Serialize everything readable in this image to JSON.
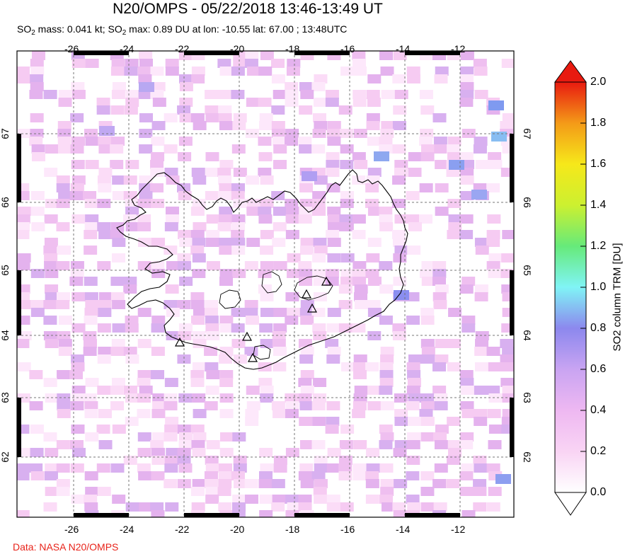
{
  "header": {
    "title": "N20/OMPS - 05/22/2018 13:46-13:49 UT",
    "subtitle_parts": {
      "p1": "SO",
      "s1": "2",
      "p2": " mass: 0.041 kt; SO",
      "s2": "2",
      "p3": " max: 0.89 DU at lon: -10.55 lat: 67.00 ; 13:48UTC"
    }
  },
  "map": {
    "lon_ticks": [
      "-26",
      "-24",
      "-22",
      "-20",
      "-18",
      "-16",
      "-14",
      "-12"
    ],
    "lat_ticks": [
      "67",
      "66",
      "65",
      "64",
      "63",
      "62"
    ],
    "lon_range": [
      -28.1,
      -9.8
    ],
    "lat_range": [
      61.2,
      68.1
    ],
    "land_outline": "Iceland coastline",
    "volcano_markers": 6
  },
  "colorbar": {
    "title": "SO2 column TRM [DU]",
    "labels": [
      "2.0",
      "1.8",
      "1.6",
      "1.4",
      "1.2",
      "1.0",
      "0.8",
      "0.6",
      "0.4",
      "0.2",
      "0.0"
    ],
    "range": [
      0.0,
      2.0
    ],
    "colors": [
      "#ffffff",
      "#f9d4f4",
      "#e8b0f0",
      "#b9a0f0",
      "#7f86ee",
      "#80f4f6",
      "#66ea7a",
      "#ccf030",
      "#f6e81a",
      "#f49a18",
      "#e81a10"
    ]
  },
  "credit": "Data: NASA N20/OMPS"
}
